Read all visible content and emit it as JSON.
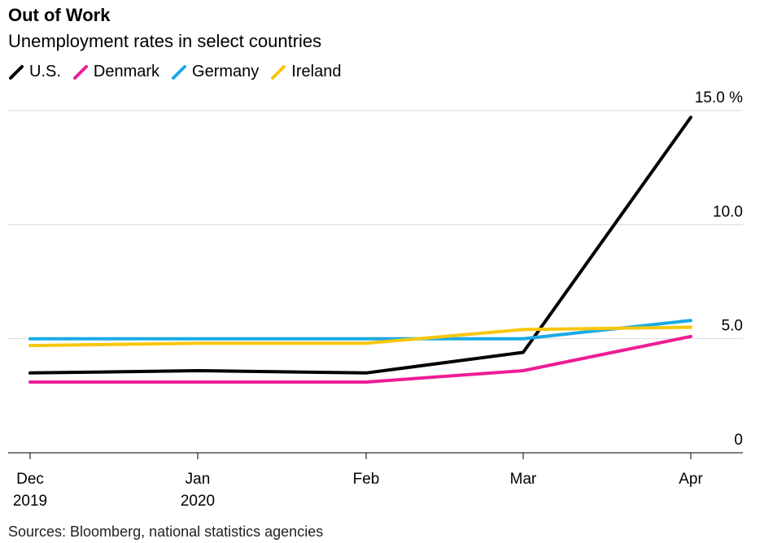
{
  "header": {
    "title": "Out of Work",
    "subtitle": "Unemployment rates in select countries"
  },
  "source": "Sources: Bloomberg, national statistics agencies",
  "chart_data": {
    "type": "line",
    "title": "Out of Work",
    "subtitle": "Unemployment rates in select countries",
    "x": [
      "Dec 2019",
      "Jan 2020",
      "Feb",
      "Mar",
      "Apr"
    ],
    "x_tick_labels": [
      [
        "Dec",
        "2019"
      ],
      [
        "Jan",
        "2020"
      ],
      [
        "Feb"
      ],
      [
        "Mar"
      ],
      [
        "Apr"
      ]
    ],
    "y_ticks": [
      {
        "value": 0,
        "label": "0"
      },
      {
        "value": 5,
        "label": "5.0"
      },
      {
        "value": 10,
        "label": "10.0"
      },
      {
        "value": 15,
        "label": "15.0 %"
      }
    ],
    "ylim": [
      0,
      15
    ],
    "grid": true,
    "legend_position": "top-left",
    "series": [
      {
        "name": "U.S.",
        "color": "#000000",
        "values": [
          3.5,
          3.6,
          3.5,
          4.4,
          14.7
        ]
      },
      {
        "name": "Denmark",
        "color": "#ee1c96",
        "values": [
          3.1,
          3.1,
          3.1,
          3.6,
          5.1
        ]
      },
      {
        "name": "Germany",
        "color": "#19aae6",
        "values": [
          5.0,
          5.0,
          5.0,
          5.0,
          5.8
        ]
      },
      {
        "name": "Ireland",
        "color": "#f8c60d",
        "values": [
          4.7,
          4.8,
          4.8,
          5.4,
          5.5
        ]
      }
    ]
  }
}
